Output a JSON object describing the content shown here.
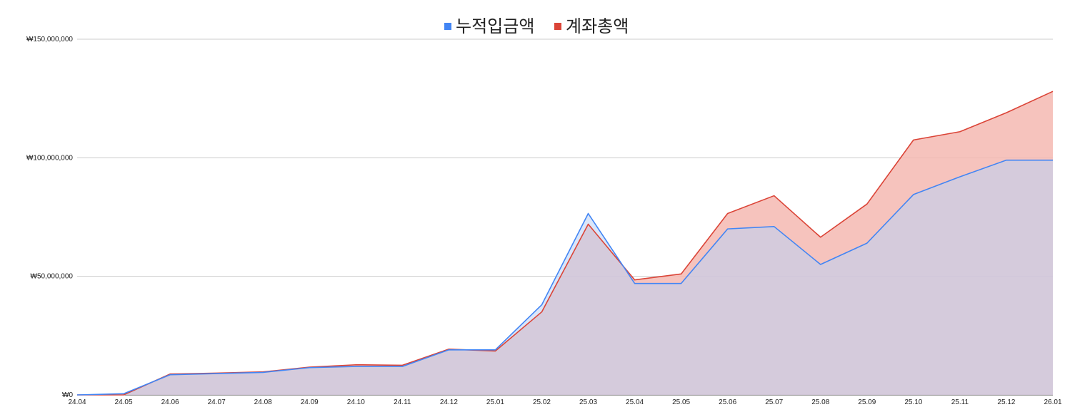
{
  "chart_data": {
    "type": "area",
    "title": "",
    "xlabel": "",
    "ylabel": "",
    "categories": [
      "24.04",
      "24.05",
      "24.06",
      "24.07",
      "24.08",
      "24.09",
      "24.10",
      "24.11",
      "24.12",
      "25.01",
      "25.02",
      "25.03",
      "25.04",
      "25.05",
      "25.06",
      "25.07",
      "25.08",
      "25.09",
      "25.10",
      "25.11",
      "25.12",
      "26.01"
    ],
    "ylim": [
      0,
      150000000
    ],
    "yticks": [
      0,
      50000000,
      100000000,
      150000000
    ],
    "ytick_labels": [
      "₩0",
      "₩50,000,000",
      "₩100,000,000",
      "₩150,000,000"
    ],
    "grid": true,
    "legend_position": "top-center",
    "series": [
      {
        "name": "누적입금액",
        "color": "#4285f4",
        "fill": "#b9d1f5",
        "values": [
          0,
          500000,
          8500000,
          9000000,
          9500000,
          11500000,
          12000000,
          12000000,
          19000000,
          19000000,
          38000000,
          76500000,
          47000000,
          47000000,
          70000000,
          71000000,
          55000000,
          64000000,
          84500000,
          92000000,
          99000000,
          99000000
        ]
      },
      {
        "name": "계좌총액",
        "color": "#db4437",
        "fill": "#f4b8b2",
        "values": [
          0,
          0,
          8800000,
          9200000,
          9700000,
          11700000,
          12700000,
          12500000,
          19300000,
          18500000,
          35000000,
          72000000,
          48500000,
          51000000,
          76500000,
          84000000,
          66500000,
          80500000,
          107500000,
          111000000,
          119000000,
          128000000
        ]
      }
    ]
  }
}
